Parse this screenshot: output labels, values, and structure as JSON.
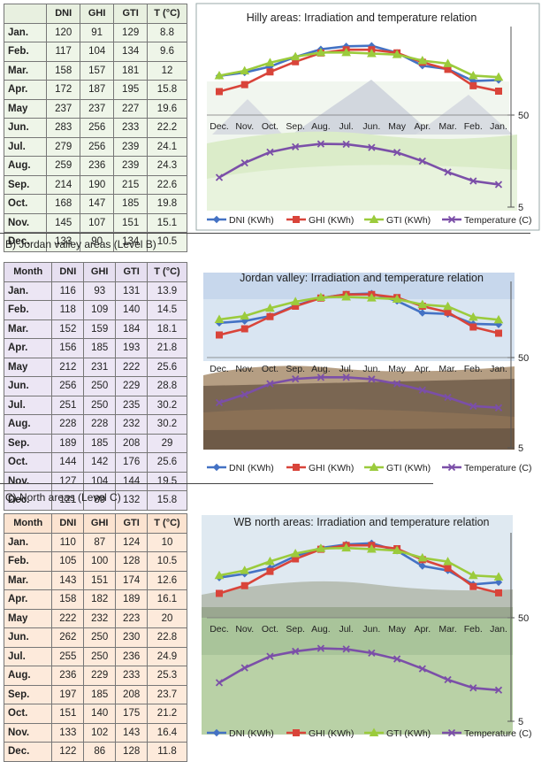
{
  "sections": [
    {
      "label": "",
      "table": {
        "headers": [
          "",
          "DNI",
          "GHI",
          "GTI",
          "T (°C)"
        ],
        "rows": [
          [
            "Jan.",
            "120",
            "91",
            "129",
            "8.8"
          ],
          [
            "Feb.",
            "117",
            "104",
            "134",
            "9.6"
          ],
          [
            "Mar.",
            "158",
            "157",
            "181",
            "12"
          ],
          [
            "Apr.",
            "172",
            "187",
            "195",
            "15.8"
          ],
          [
            "May",
            "237",
            "237",
            "227",
            "19.6"
          ],
          [
            "Jun.",
            "283",
            "256",
            "233",
            "22.2"
          ],
          [
            "Jul.",
            "279",
            "256",
            "239",
            "24.1"
          ],
          [
            "Aug.",
            "259",
            "236",
            "239",
            "24.3"
          ],
          [
            "Sep.",
            "214",
            "190",
            "215",
            "22.6"
          ],
          [
            "Oct.",
            "168",
            "147",
            "185",
            "19.8"
          ],
          [
            "Nov.",
            "145",
            "107",
            "151",
            "15.1"
          ],
          [
            "Dec.",
            "133",
            "90",
            "134",
            "10.5"
          ]
        ],
        "colors": {
          "header_bg": "#e8f0e0",
          "cell_bg": "#eef5e8"
        }
      },
      "chart_title": "Hilly areas: Irradiation and temperature relation"
    },
    {
      "label": "B) Jordan valley areas (Level B)",
      "table": {
        "headers": [
          "Month",
          "DNI",
          "GHI",
          "GTI",
          "T (°C)"
        ],
        "rows": [
          [
            "Jan.",
            "116",
            "93",
            "131",
            "13.9"
          ],
          [
            "Feb.",
            "118",
            "109",
            "140",
            "14.5"
          ],
          [
            "Mar.",
            "152",
            "159",
            "184",
            "18.1"
          ],
          [
            "Apr.",
            "156",
            "185",
            "193",
            "21.8"
          ],
          [
            "May",
            "212",
            "231",
            "222",
            "25.6"
          ],
          [
            "Jun.",
            "256",
            "250",
            "229",
            "28.8"
          ],
          [
            "Jul.",
            "251",
            "250",
            "235",
            "30.2"
          ],
          [
            "Aug.",
            "228",
            "228",
            "232",
            "30.2"
          ],
          [
            "Sep.",
            "189",
            "185",
            "208",
            "29"
          ],
          [
            "Oct.",
            "144",
            "142",
            "176",
            "25.6"
          ],
          [
            "Nov.",
            "127",
            "104",
            "144",
            "19.5"
          ],
          [
            "Dec.",
            "121",
            "89",
            "132",
            "15.8"
          ]
        ],
        "colors": {
          "header_bg": "#e6dff0",
          "cell_bg": "#ece6f4"
        }
      },
      "chart_title": "Jordan valley: Irradiation and temperature relation"
    },
    {
      "label": "C)  North areas (Level C)",
      "table": {
        "headers": [
          "Month",
          "DNI",
          "GHI",
          "GTI",
          "T (°C)"
        ],
        "rows": [
          [
            "Jan.",
            "110",
            "87",
            "124",
            "10"
          ],
          [
            "Feb.",
            "105",
            "100",
            "128",
            "10.5"
          ],
          [
            "Mar.",
            "143",
            "151",
            "174",
            "12.6"
          ],
          [
            "Apr.",
            "158",
            "182",
            "189",
            "16.1"
          ],
          [
            "May",
            "222",
            "232",
            "223",
            "20"
          ],
          [
            "Jun.",
            "262",
            "250",
            "230",
            "22.8"
          ],
          [
            "Jul.",
            "255",
            "250",
            "236",
            "24.9"
          ],
          [
            "Aug.",
            "236",
            "229",
            "233",
            "25.3"
          ],
          [
            "Sep.",
            "197",
            "185",
            "208",
            "23.7"
          ],
          [
            "Oct.",
            "151",
            "140",
            "175",
            "21.2"
          ],
          [
            "Nov.",
            "133",
            "102",
            "143",
            "16.4"
          ],
          [
            "Dec.",
            "122",
            "86",
            "128",
            "11.8"
          ]
        ],
        "colors": {
          "header_bg": "#fbe3d0",
          "cell_bg": "#fdeadb"
        }
      },
      "chart_title": "WB north areas: Irradiation and temperature relation"
    }
  ],
  "chart_data": [
    {
      "type": "line",
      "title": "Hilly areas: Irradiation and temperature relation",
      "categories": [
        "Dec.",
        "Nov.",
        "Oct.",
        "Sep.",
        "Aug.",
        "Jul.",
        "Jun.",
        "May",
        "Apr.",
        "Mar.",
        "Feb.",
        "Jan."
      ],
      "y_ticks": [
        "50",
        "5"
      ],
      "y_scale": "log",
      "series": [
        {
          "name": "DNI (KWh)",
          "color": "#4472c4",
          "marker": "diamond",
          "values": [
            133,
            145,
            168,
            214,
            259,
            279,
            283,
            237,
            172,
            158,
            117,
            120
          ]
        },
        {
          "name": "GHI (KWh)",
          "color": "#d9443a",
          "marker": "square",
          "values": [
            90,
            107,
            147,
            190,
            236,
            256,
            256,
            237,
            187,
            157,
            104,
            91
          ]
        },
        {
          "name": "GTI (KWh)",
          "color": "#9bcb3c",
          "marker": "triangle",
          "values": [
            134,
            151,
            185,
            215,
            239,
            239,
            233,
            227,
            195,
            181,
            134,
            129
          ]
        },
        {
          "name": "Temperature (C)",
          "color": "#7b4fa8",
          "marker": "x",
          "values": [
            10.5,
            15.1,
            19.8,
            22.6,
            24.3,
            24.1,
            22.2,
            19.6,
            15.8,
            12,
            9.6,
            8.8
          ]
        }
      ]
    },
    {
      "type": "line",
      "title": "Jordan valley: Irradiation and temperature relation",
      "categories": [
        "Dec.",
        "Nov.",
        "Oct.",
        "Sep.",
        "Aug.",
        "Jul.",
        "Jun.",
        "May",
        "Apr.",
        "Mar.",
        "Feb.",
        "Jan."
      ],
      "y_ticks": [
        "50",
        "5"
      ],
      "y_scale": "log",
      "series": [
        {
          "name": "DNI (KWh)",
          "color": "#4472c4",
          "marker": "diamond",
          "values": [
            121,
            127,
            144,
            189,
            228,
            251,
            256,
            212,
            156,
            152,
            118,
            116
          ]
        },
        {
          "name": "GHI (KWh)",
          "color": "#d9443a",
          "marker": "square",
          "values": [
            89,
            104,
            142,
            185,
            228,
            250,
            250,
            231,
            185,
            159,
            109,
            93
          ]
        },
        {
          "name": "GTI (KWh)",
          "color": "#9bcb3c",
          "marker": "triangle",
          "values": [
            132,
            144,
            176,
            208,
            232,
            235,
            229,
            222,
            193,
            184,
            140,
            131
          ]
        },
        {
          "name": "Temperature (C)",
          "color": "#7b4fa8",
          "marker": "x",
          "values": [
            15.8,
            19.5,
            25.6,
            29,
            30.2,
            30.2,
            28.8,
            25.6,
            21.8,
            18.1,
            14.5,
            13.9
          ]
        }
      ]
    },
    {
      "type": "line",
      "title": "WB north areas: Irradiation and temperature relation",
      "categories": [
        "Dec.",
        "Nov.",
        "Oct.",
        "Sep.",
        "Aug.",
        "Jul.",
        "Jun.",
        "May",
        "Apr.",
        "Mar.",
        "Feb.",
        "Jan."
      ],
      "y_ticks": [
        "50",
        "5"
      ],
      "y_scale": "log",
      "series": [
        {
          "name": "DNI (KWh)",
          "color": "#4472c4",
          "marker": "diamond",
          "values": [
            122,
            133,
            151,
            197,
            236,
            255,
            262,
            222,
            158,
            143,
            105,
            110
          ]
        },
        {
          "name": "GHI (KWh)",
          "color": "#d9443a",
          "marker": "square",
          "values": [
            86,
            102,
            140,
            185,
            229,
            250,
            250,
            232,
            182,
            151,
            100,
            87
          ]
        },
        {
          "name": "GTI (KWh)",
          "color": "#9bcb3c",
          "marker": "triangle",
          "values": [
            128,
            143,
            175,
            208,
            233,
            236,
            230,
            223,
            189,
            174,
            128,
            124
          ]
        },
        {
          "name": "Temperature (C)",
          "color": "#7b4fa8",
          "marker": "x",
          "values": [
            11.8,
            16.4,
            21.2,
            23.7,
            25.3,
            24.9,
            22.8,
            20,
            16.1,
            12.6,
            10.5,
            10
          ]
        }
      ]
    }
  ]
}
